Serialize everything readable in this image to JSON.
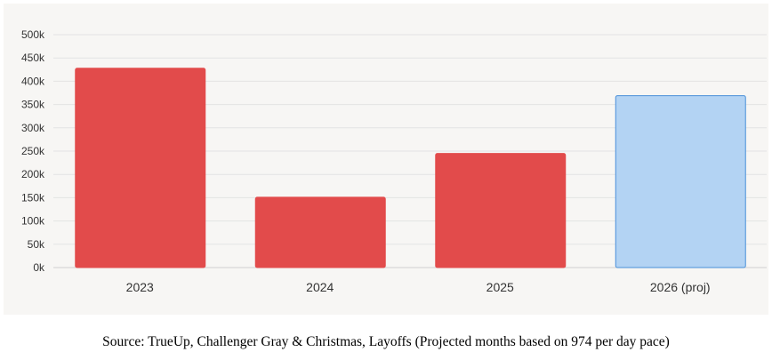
{
  "chart_data": {
    "type": "bar",
    "categories": [
      "2023",
      "2024",
      "2025",
      "2026 (proj)"
    ],
    "values": [
      428000,
      151000,
      245000,
      369000
    ],
    "bar_colors": [
      "#e24b4b",
      "#e24b4b",
      "#e24b4b",
      "#b3d3f3"
    ],
    "bar_stroke_colors": [
      "#e24b4b",
      "#e24b4b",
      "#e24b4b",
      "#4a90d9"
    ],
    "ylim": [
      0,
      500000
    ],
    "yticks": [
      0,
      50000,
      100000,
      150000,
      200000,
      250000,
      300000,
      350000,
      400000,
      450000,
      500000
    ],
    "ytick_labels": [
      "0k",
      "50k",
      "100k",
      "150k",
      "200k",
      "250k",
      "300k",
      "350k",
      "400k",
      "450k",
      "500k"
    ],
    "grid": true,
    "title": "",
    "xlabel": "",
    "ylabel": ""
  },
  "source_note": "Source: TrueUp, Challenger Gray & Christmas, Layoffs (Projected months based on 974 per day pace)"
}
